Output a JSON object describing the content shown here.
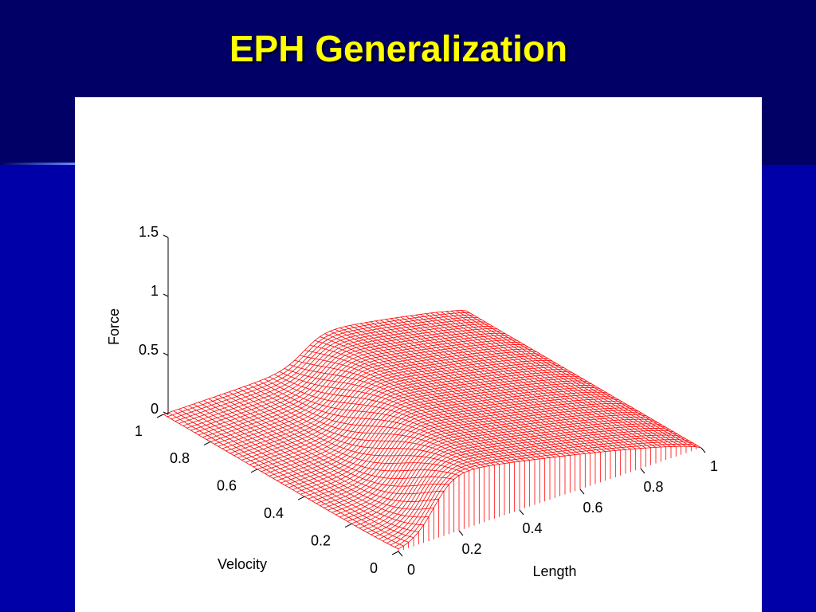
{
  "slide": {
    "title": "EPH Generalization"
  },
  "plot": {
    "z_label": "Force",
    "x_label": "Length",
    "y_label": "Velocity",
    "z_ticks": [
      "0",
      "0.5",
      "1",
      "1.5"
    ],
    "x_ticks": [
      "0",
      "0.2",
      "0.4",
      "0.6",
      "0.8",
      "1"
    ],
    "y_ticks": [
      "0",
      "0.2",
      "0.4",
      "0.6",
      "0.8",
      "1"
    ]
  }
}
